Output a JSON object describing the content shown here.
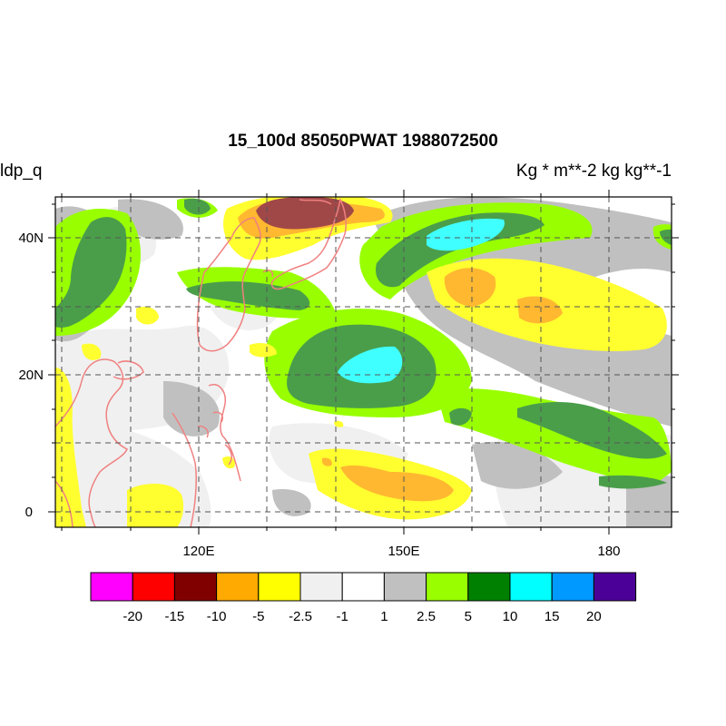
{
  "title": "15_100d 85050PWAT  1988072500",
  "left_label": "ldp_q",
  "right_label": "Kg  * m**-2 kg kg**-1",
  "axes": {
    "lon_ticks": [
      "120E",
      "150E",
      "180"
    ],
    "lat_ticks": [
      "40N",
      "20N",
      "0"
    ]
  },
  "colorbar": {
    "levels": [
      "-20",
      "-15",
      "-10",
      "-5",
      "-2.5",
      "-1",
      "1",
      "2.5",
      "5",
      "10",
      "15",
      "20"
    ],
    "colors": [
      "#ff00ff",
      "#ff0000",
      "#800000",
      "#ffaa00",
      "#ffff00",
      "#f0f0f0",
      "#ffffff",
      "#c0c0c0",
      "#99ff00",
      "#008000",
      "#00ffff",
      "#0099ff",
      "#4b0097"
    ]
  },
  "map_colors": {
    "coastline": "#f08080",
    "grid": "#555555"
  }
}
